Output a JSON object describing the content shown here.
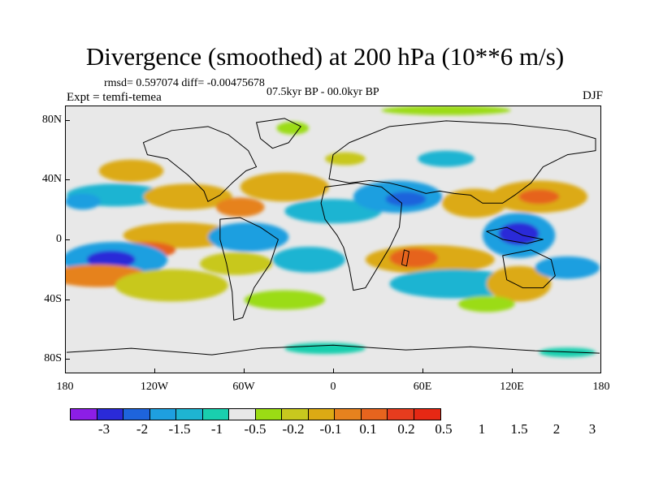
{
  "title": "Divergence (smoothed) at 200 hPa (10**6 m/s)",
  "stats": "rmsd= 0.597074 diff= -0.00475678",
  "experiment": "Expt = temfi-temea",
  "period": "07.5kyr BP - 00.0kyr BP",
  "season": "DJF",
  "map": {
    "lat_labels": [
      "80N",
      "40N",
      "0",
      "40S",
      "80S"
    ],
    "lon_labels": [
      "180",
      "120W",
      "60W",
      "0",
      "60E",
      "120E",
      "180"
    ]
  },
  "colorbar": {
    "colors": [
      "#8c1ee6",
      "#2a2ad8",
      "#1e64dc",
      "#1e9fe0",
      "#1eb4d2",
      "#19cfae",
      "#e8e8e8",
      "#9bdc14",
      "#c8c81e",
      "#dcaa14",
      "#e6821e",
      "#e6641e",
      "#e63c1e",
      "#e62814"
    ],
    "labels": [
      "-3",
      "-2",
      "-1.5",
      "-1",
      "-0.5",
      "-0.2",
      "-0.1",
      "0.1",
      "0.2",
      "0.5",
      "1",
      "1.5",
      "2",
      "3"
    ]
  }
}
